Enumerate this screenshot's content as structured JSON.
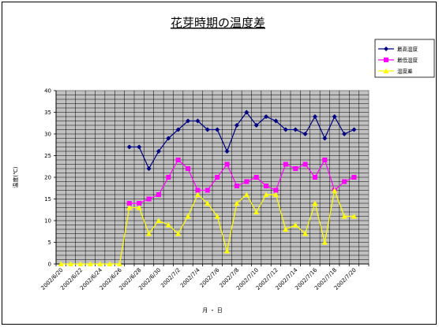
{
  "chart_data": {
    "type": "line",
    "title": "花芽時期の温度差",
    "xlabel": "月 ・ 日",
    "ylabel": "温度(℃)",
    "ylim": [
      0,
      40
    ],
    "yticks": [
      0,
      5,
      10,
      15,
      20,
      25,
      30,
      35,
      40
    ],
    "grid": true,
    "legend_position": "top-right",
    "x": [
      "2002/6/20",
      "2002/6/21",
      "2002/6/22",
      "2002/6/23",
      "2002/6/24",
      "2002/6/25",
      "2002/6/26",
      "2002/6/27",
      "2002/6/28",
      "2002/6/29",
      "2002/6/30",
      "2002/7/1",
      "2002/7/2",
      "2002/7/3",
      "2002/7/4",
      "2002/7/5",
      "2002/7/6",
      "2002/7/7",
      "2002/7/8",
      "2002/7/9",
      "2002/7/10",
      "2002/7/11",
      "2002/7/12",
      "2002/7/13",
      "2002/7/14",
      "2002/7/15",
      "2002/7/16",
      "2002/7/17",
      "2002/7/18",
      "2002/7/19",
      "2002/7/20",
      "2002/7/21"
    ],
    "xtick_labels": [
      "2002/6/20",
      "2002/6/22",
      "2002/6/24",
      "2002/6/26",
      "2002/6/28",
      "2002/6/30",
      "2002/7/2",
      "2002/7/4",
      "2002/7/6",
      "2002/7/8",
      "2002/7/10",
      "2002/7/12",
      "2002/7/14",
      "2002/7/16",
      "2002/7/18",
      "2002/7/20"
    ],
    "series": [
      {
        "name": "最高温度",
        "color": "#000080",
        "marker": "diamond",
        "values": [
          null,
          null,
          null,
          null,
          null,
          null,
          null,
          27,
          27,
          22,
          26,
          29,
          31,
          33,
          33,
          31,
          31,
          26,
          32,
          35,
          32,
          34,
          33,
          31,
          31,
          30,
          34,
          29,
          34,
          30,
          31,
          null
        ]
      },
      {
        "name": "最低温度",
        "color": "#ff00ff",
        "marker": "square",
        "values": [
          null,
          null,
          null,
          null,
          null,
          null,
          null,
          14,
          14,
          15,
          16,
          20,
          24,
          22,
          17,
          17,
          20,
          23,
          18,
          19,
          20,
          18,
          17,
          23,
          22,
          23,
          20,
          24,
          17,
          19,
          20,
          null
        ]
      },
      {
        "name": "温度差",
        "color": "#ffff00",
        "marker": "triangle",
        "values": [
          0,
          0,
          0,
          0,
          0,
          0,
          0,
          13,
          13,
          7,
          10,
          9,
          7,
          11,
          16,
          14,
          11,
          3,
          14,
          16,
          12,
          16,
          16,
          8,
          9,
          7,
          14,
          5,
          17,
          11,
          11,
          null
        ]
      }
    ]
  }
}
